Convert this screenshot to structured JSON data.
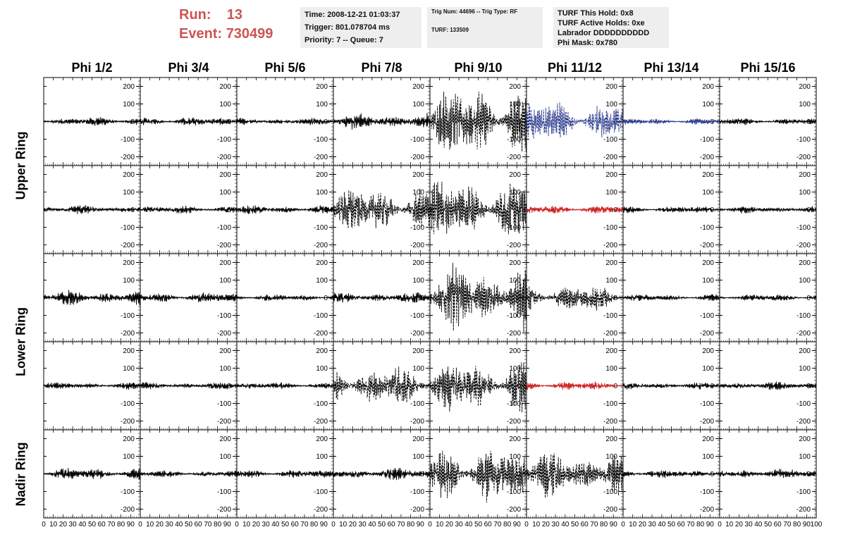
{
  "run_info": {
    "run_label": "Run:",
    "run_value": "13",
    "event_label": "Event:",
    "event_value": "730499"
  },
  "info_box_1": {
    "line1": "Time: 2008-12-21 01:03:37",
    "line2": "Trigger: 801.078704 ms",
    "line3": "Priority: 7 -- Queue: 7"
  },
  "info_box_2": {
    "line1": "Trig Num: 44696 -- Trig Type: RF",
    "line2": "TURF: 133509"
  },
  "info_box_3": {
    "line1": "TURF This Hold: 0x8",
    "line2": "TURF Active Holds: 0xe",
    "line3": "Labrador DDDDDDDDDD",
    "line4": "Phi Mask: 0x780"
  },
  "colors": {
    "run_text": "#cc5555",
    "box_bg": "#eeeeee",
    "trace_default": "#000000",
    "trace_blue": "#2a3a8c",
    "trace_red": "#cc2222"
  },
  "chart_data": {
    "type": "line",
    "title": "",
    "columns": [
      "Phi 1/2",
      "Phi 3/4",
      "Phi 5/6",
      "Phi 7/8",
      "Phi 9/10",
      "Phi 11/12",
      "Phi 13/14",
      "Phi 15/16"
    ],
    "row_groups": [
      {
        "label": "Upper Ring",
        "rows": [
          0,
          1
        ]
      },
      {
        "label": "Lower Ring",
        "rows": [
          2,
          3
        ]
      },
      {
        "label": "Nadir Ring",
        "rows": [
          4
        ]
      }
    ],
    "xlim": [
      0,
      100
    ],
    "ylim": [
      -250,
      250
    ],
    "x_ticks": [
      0,
      10,
      20,
      30,
      40,
      50,
      60,
      70,
      80,
      90,
      100
    ],
    "x_tick_labels": [
      "0",
      "10",
      "20",
      "30",
      "40",
      "50",
      "60",
      "70",
      "80",
      "90",
      "100"
    ],
    "y_ticks": [
      -200,
      -100,
      0,
      100,
      200
    ],
    "y_tick_labels": [
      "-200",
      "-100",
      "0",
      "100",
      "200"
    ],
    "panels": [
      [
        {
          "amplitude": 25,
          "style": "solid",
          "color": "black"
        },
        {
          "amplitude": 25,
          "style": "solid",
          "color": "black"
        },
        {
          "amplitude": 20,
          "style": "solid",
          "color": "black"
        },
        {
          "amplitude": 45,
          "style": "solid",
          "color": "black"
        },
        {
          "amplitude": 210,
          "style": "dashed",
          "color": "black"
        },
        {
          "amplitude": 120,
          "style": "dashed",
          "color": "blue"
        },
        {
          "amplitude": 18,
          "style": "solid",
          "color": "blue"
        },
        {
          "amplitude": 20,
          "style": "solid",
          "color": "black"
        }
      ],
      [
        {
          "amplitude": 25,
          "style": "solid",
          "color": "black"
        },
        {
          "amplitude": 25,
          "style": "solid",
          "color": "black"
        },
        {
          "amplitude": 25,
          "style": "solid",
          "color": "black"
        },
        {
          "amplitude": 130,
          "style": "dashed",
          "color": "black"
        },
        {
          "amplitude": 170,
          "style": "dashed",
          "color": "black"
        },
        {
          "amplitude": 25,
          "style": "solid",
          "color": "red"
        },
        {
          "amplitude": 20,
          "style": "solid",
          "color": "black"
        },
        {
          "amplitude": 20,
          "style": "solid",
          "color": "black"
        }
      ],
      [
        {
          "amplitude": 40,
          "style": "solid",
          "color": "black"
        },
        {
          "amplitude": 30,
          "style": "solid",
          "color": "black"
        },
        {
          "amplitude": 20,
          "style": "solid",
          "color": "black"
        },
        {
          "amplitude": 30,
          "style": "solid",
          "color": "black"
        },
        {
          "amplitude": 180,
          "style": "dashed",
          "color": "black"
        },
        {
          "amplitude": 80,
          "style": "dashed",
          "color": "black"
        },
        {
          "amplitude": 20,
          "style": "solid",
          "color": "black"
        },
        {
          "amplitude": 20,
          "style": "solid",
          "color": "black"
        }
      ],
      [
        {
          "amplitude": 20,
          "style": "solid",
          "color": "black"
        },
        {
          "amplitude": 20,
          "style": "solid",
          "color": "black"
        },
        {
          "amplitude": 20,
          "style": "solid",
          "color": "black"
        },
        {
          "amplitude": 110,
          "style": "dashed",
          "color": "black"
        },
        {
          "amplitude": 150,
          "style": "dashed",
          "color": "black"
        },
        {
          "amplitude": 25,
          "style": "solid",
          "color": "red"
        },
        {
          "amplitude": 20,
          "style": "solid",
          "color": "black"
        },
        {
          "amplitude": 25,
          "style": "solid",
          "color": "black"
        }
      ],
      [
        {
          "amplitude": 35,
          "style": "solid",
          "color": "black"
        },
        {
          "amplitude": 20,
          "style": "solid",
          "color": "black"
        },
        {
          "amplitude": 25,
          "style": "solid",
          "color": "black"
        },
        {
          "amplitude": 35,
          "style": "solid",
          "color": "black"
        },
        {
          "amplitude": 170,
          "style": "dashed",
          "color": "black"
        },
        {
          "amplitude": 130,
          "style": "dashed",
          "color": "black"
        },
        {
          "amplitude": 25,
          "style": "solid",
          "color": "black"
        },
        {
          "amplitude": 30,
          "style": "solid",
          "color": "black"
        }
      ]
    ]
  }
}
